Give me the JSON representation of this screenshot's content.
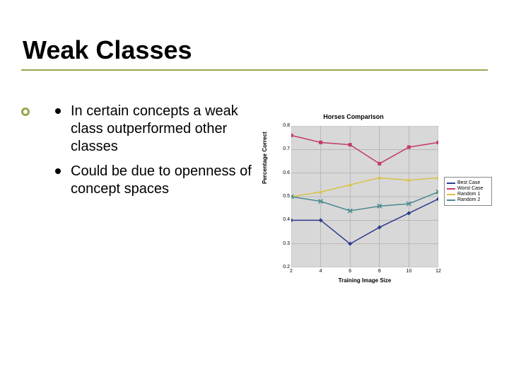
{
  "title": "Weak Classes",
  "bullets": [
    "In certain concepts a weak class outperformed other classes",
    "Could be due to openness of concept spaces"
  ],
  "chart": {
    "type": "line",
    "title": "Horses Comparison",
    "xlabel": "Training Image Size",
    "ylabel": "Percentage Correct",
    "background_color": "#d8d8d8",
    "grid_color": "#9a9a9a",
    "xlim": [
      2,
      12
    ],
    "ylim": [
      0.2,
      0.8
    ],
    "xticks": [
      2,
      4,
      6,
      8,
      10,
      12
    ],
    "yticks": [
      0.2,
      0.3,
      0.4,
      0.5,
      0.6,
      0.7,
      0.8
    ],
    "title_fontsize": 9,
    "label_fontsize": 8,
    "tick_fontsize": 7,
    "legend_fontsize": 7,
    "series": [
      {
        "name": "Best Case",
        "color": "#2e3b8f",
        "marker": "diamond",
        "x": [
          2,
          4,
          6,
          8,
          10,
          12
        ],
        "y": [
          0.4,
          0.4,
          0.3,
          0.37,
          0.43,
          0.49
        ]
      },
      {
        "name": "Worst Case",
        "color": "#c43a6b",
        "marker": "square",
        "x": [
          2,
          4,
          6,
          8,
          10,
          12
        ],
        "y": [
          0.76,
          0.73,
          0.72,
          0.64,
          0.71,
          0.73
        ]
      },
      {
        "name": "Random 1",
        "color": "#d9c24a",
        "marker": "triangle",
        "x": [
          2,
          4,
          6,
          8,
          10,
          12
        ],
        "y": [
          0.5,
          0.52,
          0.55,
          0.58,
          0.57,
          0.58
        ]
      },
      {
        "name": "Random 2",
        "color": "#4a8a8f",
        "marker": "x",
        "x": [
          2,
          4,
          6,
          8,
          10,
          12
        ],
        "y": [
          0.5,
          0.48,
          0.44,
          0.46,
          0.47,
          0.52
        ]
      }
    ]
  },
  "accent_color": "#95a84f"
}
